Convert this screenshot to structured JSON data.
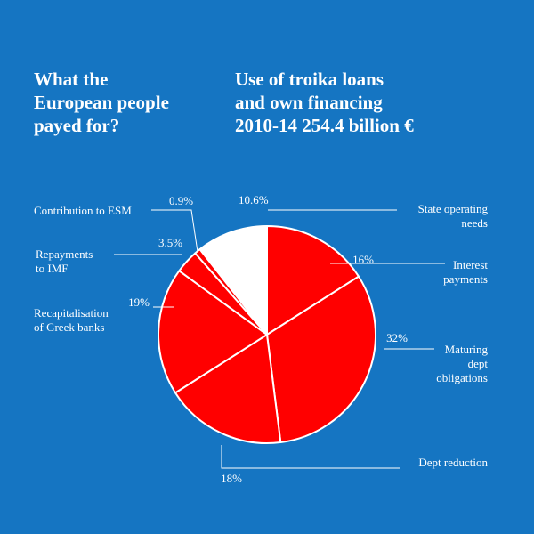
{
  "title": "What the\nEuropean people\npayed for?",
  "subtitle": "Use of troika loans\nand own financing\n2010-14 254.4 billion €",
  "colors": {
    "background": "#1575c2",
    "main": "#ff0000",
    "highlight": "#ffffff",
    "line": "#ffffff"
  },
  "chart_data": {
    "type": "pie",
    "title": "What the European people payed for?",
    "subtitle": "Use of troika loans and own financing 2010-14 254.4 billion €",
    "start": "12 o'clock",
    "direction": "clockwise",
    "slices": [
      {
        "name": "State operating needs",
        "label": [
          "State operating",
          "needs"
        ],
        "value": 16,
        "pct_label": "16%",
        "color": "#ff0000"
      },
      {
        "name": "Interest payments",
        "label": [
          "Interest",
          "payments"
        ],
        "value": 32,
        "pct_label": "32%",
        "color": "#ff0000"
      },
      {
        "name": "Maturing dept obligations",
        "label": [
          "Maturing",
          "dept",
          "obligations"
        ],
        "value": 18,
        "pct_label": "18%",
        "color": "#ff0000"
      },
      {
        "name": "Dept reduction",
        "label": [
          "Dept reduction"
        ],
        "value": 19,
        "pct_label": "19%",
        "color": "#ff0000"
      },
      {
        "name": "Recapitalisation of Greek banks",
        "label": [
          "Recapitalisation",
          "of Greek banks"
        ],
        "value": 3.5,
        "pct_label": "3.5%",
        "color": "#ff0000"
      },
      {
        "name": "Repayments to IMF",
        "label": [
          "Repayments",
          "to IMF"
        ],
        "value": 0.9,
        "pct_label": "0.9%",
        "color": "#ff0000"
      },
      {
        "name": "Contribution to ESM",
        "label": [
          "Contribution to ESM"
        ],
        "value": 10.6,
        "pct_label": "10.6%",
        "color": "#ffffff"
      }
    ]
  }
}
